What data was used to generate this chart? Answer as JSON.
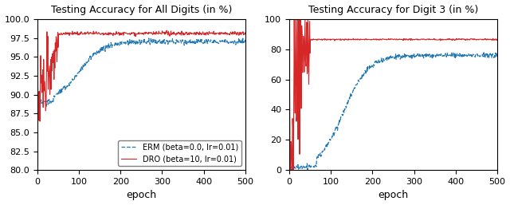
{
  "title1": "Testing Accuracy for All Digits (in %)",
  "title2": "Testing Accuracy for Digit 3 (in %)",
  "xlabel": "epoch",
  "ylim1": [
    80.0,
    100.0
  ],
  "ylim2": [
    0,
    100
  ],
  "xlim": [
    0,
    500
  ],
  "erm_color": "#1f77b4",
  "dro_color": "#d62728",
  "legend_erm": "ERM (beta=0.0, lr=0.01)",
  "legend_dro": "DRO (beta=10, lr=0.01)",
  "figsize": [
    6.4,
    2.57
  ],
  "dpi": 100,
  "yticks1": [
    80.0,
    82.5,
    85.0,
    87.5,
    90.0,
    92.5,
    95.0,
    97.5,
    100.0
  ],
  "yticks2": [
    0,
    20,
    40,
    60,
    80,
    100
  ]
}
